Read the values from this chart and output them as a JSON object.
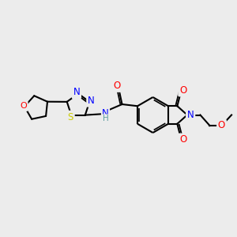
{
  "background_color": "#ececec",
  "bond_color": "#000000",
  "atom_colors": {
    "N": "#0000ff",
    "O": "#ff0000",
    "S": "#cccc00",
    "C": "#000000",
    "H": "#5f9ea0"
  },
  "figsize": [
    3.0,
    3.0
  ],
  "dpi": 100,
  "xlim": [
    0,
    10
  ],
  "ylim": [
    0,
    10
  ]
}
